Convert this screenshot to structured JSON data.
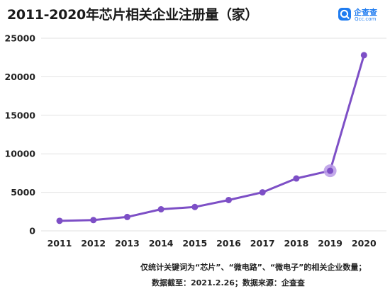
{
  "header": {
    "title": "2011-2020年芯片相关企业注册量（家）",
    "logo": {
      "icon": "qcc-logo-icon",
      "name": "企查查",
      "url": "Qcc.com"
    }
  },
  "notes": [
    "仅统计关键词为“芯片”、“微电路”、“微电子”的相关企业数量；",
    "数据截至：2021.2.26；数据来源：企查查"
  ],
  "colors": {
    "line": "#7d4fc6",
    "marker": "#7d4fc6",
    "halo": "#b99ae6",
    "grid": "#e2e2e2",
    "axis_text": "#222222",
    "logo": "#1f7cf0"
  },
  "chart_data": {
    "type": "line",
    "title": "2011-2020年芯片相关企业注册量（家）",
    "xlabel": "",
    "ylabel": "",
    "x": [
      "2011",
      "2012",
      "2013",
      "2014",
      "2015",
      "2016",
      "2017",
      "2018",
      "2019",
      "2020"
    ],
    "series": [
      {
        "values": [
          1300,
          1400,
          1800,
          2800,
          3100,
          4000,
          5000,
          6800,
          7800,
          22800
        ]
      }
    ],
    "ylim": [
      0,
      25000
    ],
    "yticks": [
      0,
      5000,
      10000,
      15000,
      20000,
      25000
    ],
    "grid": "horizontal",
    "legend": "none",
    "highlight": "2019"
  }
}
